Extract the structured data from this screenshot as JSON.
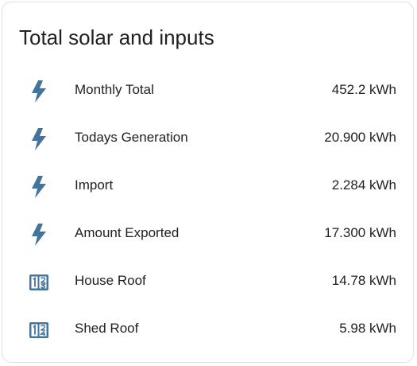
{
  "card": {
    "title": "Total solar and inputs"
  },
  "colors": {
    "icon": "#44739e",
    "text": "#212121",
    "border": "#e0e0e0"
  },
  "rows": [
    {
      "icon": "flash-icon",
      "label": "Monthly Total",
      "value": "452.2 kWh"
    },
    {
      "icon": "flash-icon",
      "label": "Todays Generation",
      "value": "20.900 kWh"
    },
    {
      "icon": "flash-icon",
      "label": "Import",
      "value": "2.284 kWh"
    },
    {
      "icon": "flash-icon",
      "label": "Amount Exported",
      "value": "17.300 kWh"
    },
    {
      "icon": "numeric-box-icon",
      "label": "House Roof",
      "value": "14.78 kWh"
    },
    {
      "icon": "numeric-box-icon",
      "label": "Shed Roof",
      "value": "5.98 kWh"
    }
  ]
}
